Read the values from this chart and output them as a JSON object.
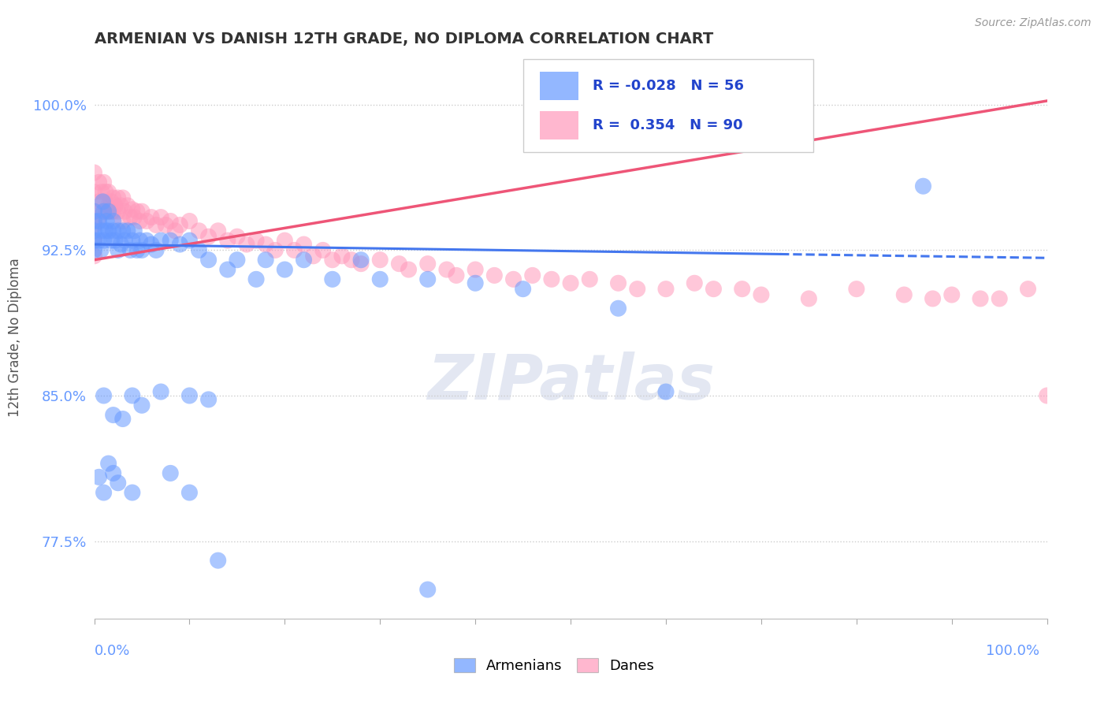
{
  "title": "ARMENIAN VS DANISH 12TH GRADE, NO DIPLOMA CORRELATION CHART",
  "ylabel": "12th Grade, No Diploma",
  "source": "Source: ZipAtlas.com",
  "watermark": "ZIPatlas",
  "xlim": [
    0.0,
    1.0
  ],
  "ylim": [
    0.735,
    1.025
  ],
  "yticks": [
    0.775,
    0.85,
    0.925,
    1.0
  ],
  "ytick_labels": [
    "77.5%",
    "85.0%",
    "92.5%",
    "100.0%"
  ],
  "armenian_color": "#6699ff",
  "danish_color": "#ff99bb",
  "trend_armenian_color": "#4477ee",
  "trend_danish_color": "#ee5577",
  "armenian_R": -0.028,
  "armenian_N": 56,
  "danish_R": 0.354,
  "danish_N": 90,
  "arm_trend_x0": 0.0,
  "arm_trend_y0": 0.928,
  "arm_trend_x1": 1.0,
  "arm_trend_y1": 0.921,
  "dan_trend_x0": 0.0,
  "dan_trend_y0": 0.92,
  "dan_trend_x1": 1.0,
  "dan_trend_y1": 1.002,
  "armenian_x": [
    0.0,
    0.0,
    0.0,
    0.0,
    0.0,
    0.005,
    0.005,
    0.007,
    0.008,
    0.009,
    0.01,
    0.01,
    0.012,
    0.013,
    0.015,
    0.015,
    0.018,
    0.02,
    0.02,
    0.022,
    0.025,
    0.025,
    0.028,
    0.03,
    0.032,
    0.035,
    0.038,
    0.04,
    0.042,
    0.045,
    0.048,
    0.05,
    0.055,
    0.06,
    0.065,
    0.07,
    0.08,
    0.09,
    0.1,
    0.11,
    0.12,
    0.14,
    0.15,
    0.17,
    0.18,
    0.2,
    0.22,
    0.25,
    0.28,
    0.3,
    0.35,
    0.4,
    0.45,
    0.55,
    0.6,
    0.87
  ],
  "armenian_y": [
    0.93,
    0.94,
    0.925,
    0.935,
    0.945,
    0.93,
    0.94,
    0.925,
    0.935,
    0.95,
    0.945,
    0.93,
    0.935,
    0.94,
    0.935,
    0.945,
    0.93,
    0.935,
    0.94,
    0.93,
    0.925,
    0.935,
    0.928,
    0.935,
    0.93,
    0.935,
    0.925,
    0.93,
    0.935,
    0.925,
    0.93,
    0.925,
    0.93,
    0.928,
    0.925,
    0.93,
    0.93,
    0.928,
    0.93,
    0.925,
    0.92,
    0.915,
    0.92,
    0.91,
    0.92,
    0.915,
    0.92,
    0.91,
    0.92,
    0.91,
    0.91,
    0.908,
    0.905,
    0.895,
    0.852,
    0.958
  ],
  "armenian_y_outliers_x": [
    0.01,
    0.02,
    0.03,
    0.04,
    0.05,
    0.07,
    0.1,
    0.12,
    0.35
  ],
  "armenian_y_outliers_y": [
    0.85,
    0.84,
    0.838,
    0.85,
    0.845,
    0.852,
    0.85,
    0.848,
    0.75
  ],
  "armenian_low_x": [
    0.005,
    0.01,
    0.015,
    0.02,
    0.025,
    0.04,
    0.08,
    0.1,
    0.13
  ],
  "armenian_low_y": [
    0.808,
    0.8,
    0.815,
    0.81,
    0.805,
    0.8,
    0.81,
    0.8,
    0.765
  ],
  "danish_x": [
    0.0,
    0.0,
    0.0,
    0.0,
    0.0,
    0.0,
    0.005,
    0.005,
    0.005,
    0.008,
    0.01,
    0.01,
    0.012,
    0.013,
    0.015,
    0.015,
    0.018,
    0.018,
    0.02,
    0.02,
    0.022,
    0.025,
    0.025,
    0.028,
    0.03,
    0.03,
    0.032,
    0.035,
    0.038,
    0.04,
    0.042,
    0.045,
    0.048,
    0.05,
    0.055,
    0.06,
    0.065,
    0.07,
    0.075,
    0.08,
    0.085,
    0.09,
    0.1,
    0.11,
    0.12,
    0.13,
    0.14,
    0.15,
    0.16,
    0.17,
    0.18,
    0.19,
    0.2,
    0.21,
    0.22,
    0.23,
    0.24,
    0.25,
    0.26,
    0.27,
    0.28,
    0.3,
    0.32,
    0.33,
    0.35,
    0.37,
    0.38,
    0.4,
    0.42,
    0.44,
    0.46,
    0.48,
    0.5,
    0.52,
    0.55,
    0.57,
    0.6,
    0.63,
    0.65,
    0.68,
    0.7,
    0.75,
    0.8,
    0.85,
    0.88,
    0.9,
    0.93,
    0.95,
    0.98,
    1.0
  ],
  "danish_y": [
    0.965,
    0.955,
    0.945,
    0.938,
    0.93,
    0.922,
    0.96,
    0.95,
    0.942,
    0.955,
    0.96,
    0.95,
    0.955,
    0.945,
    0.955,
    0.948,
    0.95,
    0.945,
    0.952,
    0.945,
    0.948,
    0.952,
    0.945,
    0.948,
    0.952,
    0.94,
    0.945,
    0.948,
    0.942,
    0.946,
    0.942,
    0.945,
    0.94,
    0.945,
    0.94,
    0.942,
    0.938,
    0.942,
    0.938,
    0.94,
    0.935,
    0.938,
    0.94,
    0.935,
    0.932,
    0.935,
    0.93,
    0.932,
    0.928,
    0.93,
    0.928,
    0.925,
    0.93,
    0.925,
    0.928,
    0.922,
    0.925,
    0.92,
    0.922,
    0.92,
    0.918,
    0.92,
    0.918,
    0.915,
    0.918,
    0.915,
    0.912,
    0.915,
    0.912,
    0.91,
    0.912,
    0.91,
    0.908,
    0.91,
    0.908,
    0.905,
    0.905,
    0.908,
    0.905,
    0.905,
    0.902,
    0.9,
    0.905,
    0.902,
    0.9,
    0.902,
    0.9,
    0.9,
    0.905,
    0.85
  ]
}
